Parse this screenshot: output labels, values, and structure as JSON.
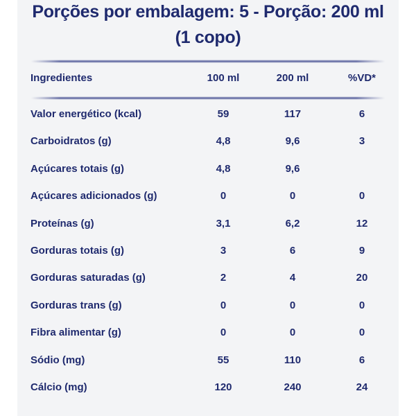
{
  "title": {
    "line1": "Porções por embalagem: 5 - Porção: 200 ml",
    "line2": "(1 copo)"
  },
  "table": {
    "headers": [
      "Ingredientes",
      "100 ml",
      "200 ml",
      "%VD*"
    ],
    "rows": [
      [
        "Valor energético (kcal)",
        "59",
        "117",
        "6"
      ],
      [
        "Carboidratos (g)",
        "4,8",
        "9,6",
        "3"
      ],
      [
        "Açúcares totais (g)",
        "4,8",
        "9,6",
        ""
      ],
      [
        "Açúcares adicionados (g)",
        "0",
        "0",
        "0"
      ],
      [
        "Proteínas (g)",
        "3,1",
        "6,2",
        "12"
      ],
      [
        "Gorduras totais (g)",
        "3",
        "6",
        "9"
      ],
      [
        "Gorduras saturadas (g)",
        "2",
        "4",
        "20"
      ],
      [
        "Gorduras trans (g)",
        "0",
        "0",
        "0"
      ],
      [
        "Fibra alimentar (g)",
        "0",
        "0",
        "0"
      ],
      [
        "Sódio (mg)",
        "55",
        "110",
        "6"
      ],
      [
        "Cálcio (mg)",
        "120",
        "240",
        "24"
      ]
    ]
  },
  "colors": {
    "text": "#1f2a6e",
    "panel": "#f3f4f6"
  }
}
